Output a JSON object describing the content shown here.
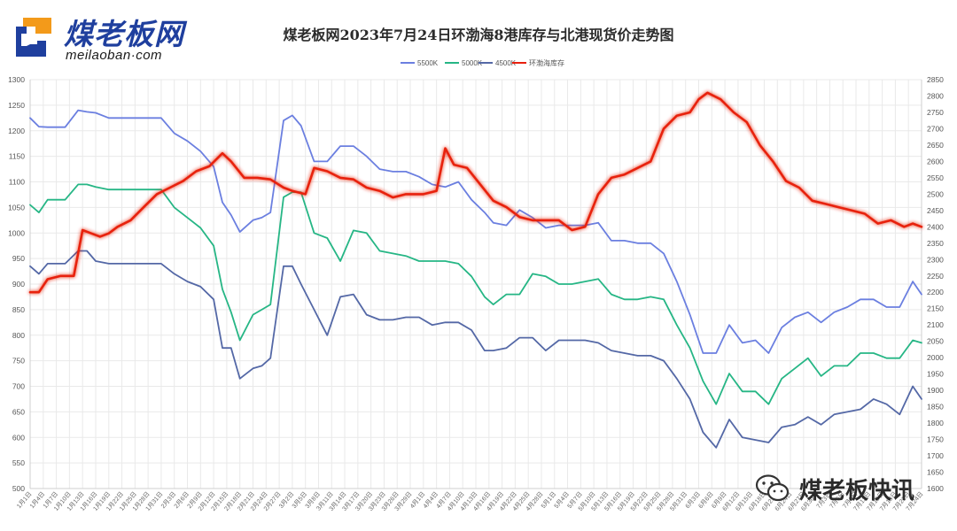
{
  "brand": {
    "name": "煤老板网",
    "site": "meilaoban·com"
  },
  "watermark": {
    "text": "煤老板快讯"
  },
  "chart_data": {
    "type": "line",
    "title": "煤老板网2023年7月24日环渤海8港库存与北港现货价走势图",
    "legend_position": "top-center",
    "grid": true,
    "left_axis": {
      "min": 500,
      "max": 1300,
      "ticks": [
        500,
        550,
        600,
        650,
        700,
        750,
        800,
        850,
        900,
        950,
        1000,
        1050,
        1100,
        1150,
        1200,
        1250,
        1300
      ]
    },
    "right_axis": {
      "min": 1600,
      "max": 2850,
      "ticks": [
        1600,
        1650,
        1700,
        1750,
        1800,
        1850,
        1900,
        1950,
        2000,
        2050,
        2100,
        2150,
        2200,
        2250,
        2300,
        2350,
        2400,
        2450,
        2500,
        2550,
        2600,
        2650,
        2700,
        2750,
        2800,
        2850
      ]
    },
    "x_labels": [
      "1月1日",
      "1月4日",
      "1月7日",
      "1月10日",
      "1月13日",
      "1月16日",
      "1月19日",
      "1月22日",
      "1月25日",
      "1月28日",
      "1月31日",
      "2月3日",
      "2月6日",
      "2月9日",
      "2月12日",
      "2月15日",
      "2月18日",
      "2月21日",
      "2月24日",
      "2月27日",
      "3月2日",
      "3月5日",
      "3月8日",
      "3月11日",
      "3月14日",
      "3月17日",
      "3月20日",
      "3月23日",
      "3月26日",
      "3月29日",
      "4月1日",
      "4月4日",
      "4月7日",
      "4月10日",
      "4月13日",
      "4月16日",
      "4月19日",
      "4月22日",
      "4月25日",
      "4月28日",
      "5月1日",
      "5月4日",
      "5月7日",
      "5月10日",
      "5月13日",
      "5月16日",
      "5月19日",
      "5月22日",
      "5月25日",
      "5月28日",
      "5月31日",
      "6月3日",
      "6月6日",
      "6月9日",
      "6月12日",
      "6月15日",
      "6月18日",
      "6月21日",
      "6月24日",
      "6月27日",
      "6月30日",
      "7月3日",
      "7月6日",
      "7月9日",
      "7月12日",
      "7月15日",
      "7月18日",
      "7月21日",
      "7月24日"
    ],
    "series": [
      {
        "name": "5500K",
        "axis": "left",
        "color": "#6b7fe0",
        "x": [
          "1月1日",
          "1月3日",
          "1月5日",
          "1月9日",
          "1月12日",
          "1月14日",
          "1月16日",
          "1月19日",
          "1月21日",
          "1月23日",
          "1月28日",
          "1月31日",
          "2月3日",
          "2月6日",
          "2月9日",
          "2月12日",
          "2月14日",
          "2月16日",
          "2月18日",
          "2月21日",
          "2月23日",
          "2月25日",
          "2月28日",
          "3月2日",
          "3月4日",
          "3月7日",
          "3月10日",
          "3月13日",
          "3月16日",
          "3月19日",
          "3月22日",
          "3月25日",
          "3月28日",
          "3月31日",
          "4月3日",
          "4月6日",
          "4月9日",
          "4月12日",
          "4月15日",
          "4月17日",
          "4月20日",
          "4月23日",
          "4月26日",
          "4月29日",
          "5月2日",
          "5月5日",
          "5月8日",
          "5月11日",
          "5月14日",
          "5月17日",
          "5月20日",
          "5月23日",
          "5月26日",
          "5月29日",
          "6月1日",
          "6月4日",
          "6月7日",
          "6月10日",
          "6月13日",
          "6月16日",
          "6月19日",
          "6月22日",
          "6月25日",
          "6月28日",
          "7月1日",
          "7月4日",
          "7月7日",
          "7月10日",
          "7月13日",
          "7月16日",
          "7月19日",
          "7月22日",
          "7月24日"
        ],
        "values": [
          1225,
          1208,
          1207,
          1207,
          1240,
          1237,
          1235,
          1225,
          1225,
          1225,
          1225,
          1225,
          1195,
          1180,
          1160,
          1130,
          1060,
          1035,
          1002,
          1025,
          1030,
          1040,
          1220,
          1230,
          1210,
          1140,
          1140,
          1170,
          1170,
          1150,
          1125,
          1120,
          1120,
          1110,
          1095,
          1090,
          1100,
          1065,
          1040,
          1020,
          1015,
          1045,
          1030,
          1010,
          1015,
          1015,
          1015,
          1020,
          985,
          985,
          980,
          980,
          960,
          905,
          840,
          765,
          765,
          820,
          785,
          790,
          765,
          815,
          835,
          845,
          825,
          845,
          855,
          870,
          870,
          855,
          855,
          905,
          880
        ]
      },
      {
        "name": "5000K",
        "axis": "left",
        "color": "#26b685",
        "x": [
          "1月1日",
          "1月3日",
          "1月5日",
          "1月9日",
          "1月12日",
          "1月14日",
          "1月16日",
          "1月19日",
          "1月21日",
          "1月23日",
          "1月28日",
          "1月31日",
          "2月3日",
          "2月6日",
          "2月9日",
          "2月12日",
          "2月14日",
          "2月16日",
          "2月18日",
          "2月21日",
          "2月23日",
          "2月25日",
          "2月28日",
          "3月2日",
          "3月4日",
          "3月7日",
          "3月10日",
          "3月13日",
          "3月16日",
          "3月19日",
          "3月22日",
          "3月25日",
          "3月28日",
          "3月31日",
          "4月3日",
          "4月6日",
          "4月9日",
          "4月12日",
          "4月15日",
          "4月17日",
          "4月20日",
          "4月23日",
          "4月26日",
          "4月29日",
          "5月2日",
          "5月5日",
          "5月8日",
          "5月11日",
          "5月14日",
          "5月17日",
          "5月20日",
          "5月23日",
          "5月26日",
          "5月29日",
          "6月1日",
          "6月4日",
          "6月7日",
          "6月10日",
          "6月13日",
          "6月16日",
          "6月19日",
          "6月22日",
          "6月25日",
          "6月28日",
          "7月1日",
          "7月4日",
          "7月7日",
          "7月10日",
          "7月13日",
          "7月16日",
          "7月19日",
          "7月22日",
          "7月24日"
        ],
        "values": [
          1055,
          1040,
          1065,
          1065,
          1095,
          1095,
          1090,
          1085,
          1085,
          1085,
          1085,
          1085,
          1050,
          1030,
          1010,
          975,
          890,
          845,
          790,
          840,
          850,
          860,
          1070,
          1080,
          1080,
          1000,
          990,
          945,
          1005,
          1000,
          965,
          960,
          955,
          945,
          945,
          945,
          940,
          915,
          875,
          860,
          880,
          880,
          920,
          915,
          900,
          900,
          905,
          910,
          880,
          870,
          870,
          875,
          870,
          820,
          775,
          710,
          665,
          725,
          690,
          690,
          665,
          715,
          735,
          755,
          720,
          740,
          740,
          765,
          765,
          755,
          755,
          790,
          785
        ]
      },
      {
        "name": "4500K",
        "axis": "left",
        "color": "#5468a6",
        "x": [
          "1月1日",
          "1月3日",
          "1月5日",
          "1月9日",
          "1月12日",
          "1月14日",
          "1月16日",
          "1月19日",
          "1月21日",
          "1月23日",
          "1月28日",
          "1月31日",
          "2月3日",
          "2月6日",
          "2月9日",
          "2月12日",
          "2月14日",
          "2月16日",
          "2月18日",
          "2月21日",
          "2月23日",
          "2月25日",
          "2月28日",
          "3月2日",
          "3月4日",
          "3月7日",
          "3月10日",
          "3月13日",
          "3月16日",
          "3月19日",
          "3月22日",
          "3月25日",
          "3月28日",
          "3月31日",
          "4月3日",
          "4月6日",
          "4月9日",
          "4月12日",
          "4月15日",
          "4月17日",
          "4月20日",
          "4月23日",
          "4月26日",
          "4月29日",
          "5月2日",
          "5月5日",
          "5月8日",
          "5月11日",
          "5月14日",
          "5月17日",
          "5月20日",
          "5月23日",
          "5月26日",
          "5月29日",
          "6月1日",
          "6月4日",
          "6月7日",
          "6月10日",
          "6月13日",
          "6月16日",
          "6月19日",
          "6月22日",
          "6月25日",
          "6月28日",
          "7月1日",
          "7月4日",
          "7月7日",
          "7月10日",
          "7月13日",
          "7月16日",
          "7月19日",
          "7月22日",
          "7月24日"
        ],
        "values": [
          935,
          920,
          940,
          940,
          965,
          965,
          945,
          940,
          940,
          940,
          940,
          940,
          920,
          905,
          895,
          870,
          775,
          775,
          715,
          735,
          740,
          755,
          935,
          935,
          900,
          850,
          800,
          875,
          880,
          840,
          830,
          830,
          835,
          835,
          820,
          825,
          825,
          810,
          770,
          770,
          775,
          795,
          795,
          770,
          790,
          790,
          790,
          785,
          770,
          765,
          760,
          760,
          750,
          715,
          675,
          610,
          580,
          635,
          600,
          595,
          590,
          620,
          625,
          640,
          625,
          645,
          650,
          655,
          675,
          665,
          645,
          700,
          675
        ]
      },
      {
        "name": "环渤海库存",
        "axis": "right",
        "color": "#e8200e",
        "x": [
          "1月1日",
          "1月3日",
          "1月5日",
          "1月8日",
          "1月11日",
          "1月13日",
          "1月15日",
          "1月17日",
          "1月19日",
          "1月21日",
          "1月24日",
          "1月27日",
          "1月30日",
          "2月2日",
          "2月5日",
          "2月8日",
          "2月11日",
          "2月14日",
          "2月16日",
          "2月19日",
          "2月22日",
          "2月25日",
          "2月28日",
          "3月2日",
          "3月5日",
          "3月7日",
          "3月10日",
          "3月13日",
          "3月16日",
          "3月19日",
          "3月22日",
          "3月25日",
          "3月28日",
          "4月1日",
          "4月4日",
          "4月6日",
          "4月8日",
          "4月11日",
          "4月14日",
          "4月17日",
          "4月20日",
          "4月23日",
          "4月26日",
          "4月29日",
          "5月2日",
          "5月5日",
          "5月8日",
          "5月11日",
          "5月14日",
          "5月17日",
          "5月20日",
          "5月23日",
          "5月26日",
          "5月29日",
          "6月1日",
          "6月3日",
          "6月5日",
          "6月8日",
          "6月11日",
          "6月14日",
          "6月17日",
          "6月20日",
          "6月23日",
          "6月26日",
          "6月29日",
          "7月2日",
          "7月5日",
          "7月8日",
          "7月11日",
          "7月14日",
          "7月17日",
          "7月20日",
          "7月22日",
          "7月24日"
        ],
        "values": [
          2200,
          2200,
          2240,
          2250,
          2250,
          2390,
          2380,
          2370,
          2380,
          2400,
          2420,
          2460,
          2500,
          2520,
          2540,
          2570,
          2585,
          2625,
          2600,
          2550,
          2550,
          2545,
          2520,
          2510,
          2500,
          2580,
          2570,
          2550,
          2545,
          2520,
          2510,
          2490,
          2500,
          2500,
          2510,
          2640,
          2590,
          2580,
          2530,
          2480,
          2460,
          2430,
          2420,
          2420,
          2420,
          2390,
          2400,
          2500,
          2550,
          2560,
          2580,
          2600,
          2700,
          2740,
          2750,
          2790,
          2810,
          2790,
          2750,
          2720,
          2650,
          2600,
          2540,
          2520,
          2480,
          2470,
          2460,
          2450,
          2440,
          2410,
          2420,
          2400,
          2410,
          2400
        ]
      }
    ]
  }
}
